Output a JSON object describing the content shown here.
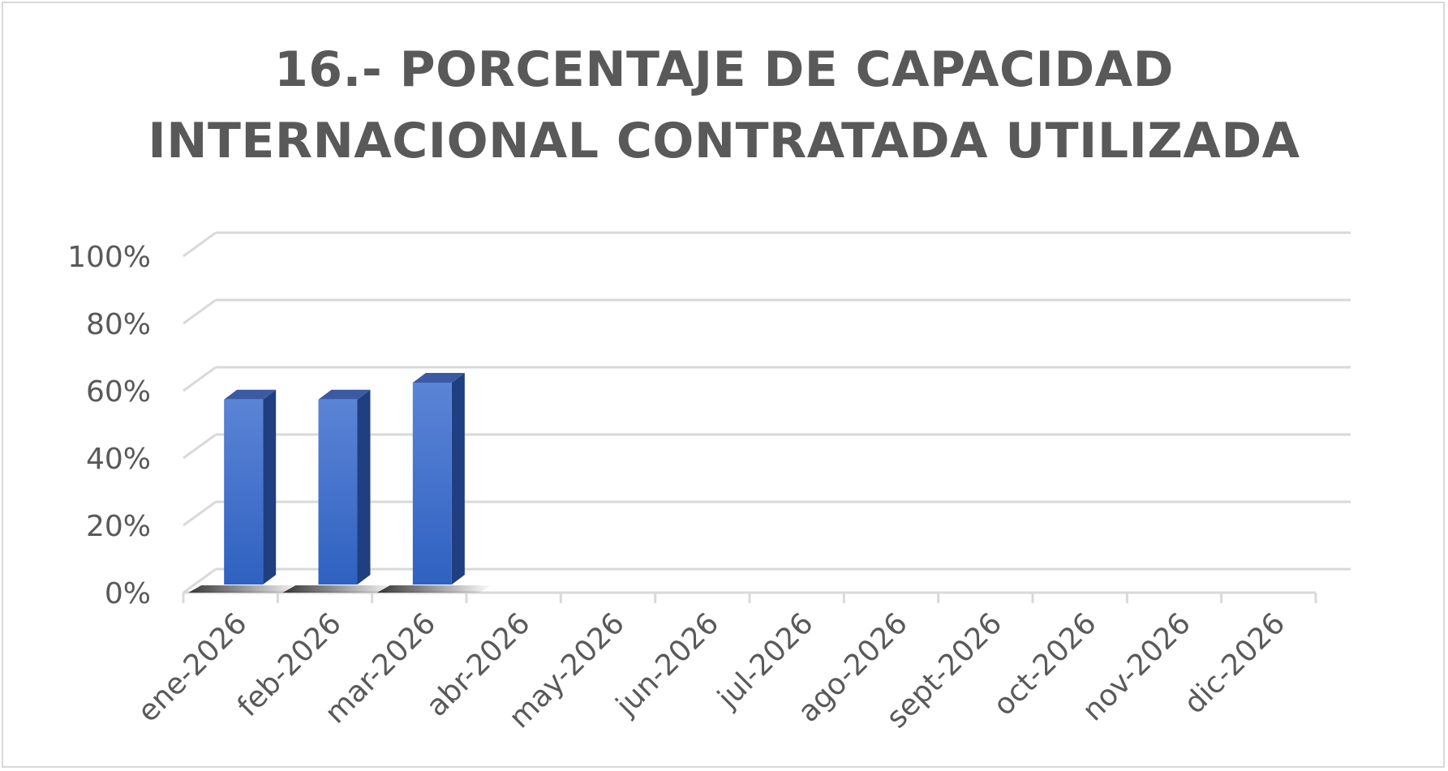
{
  "chart_data": {
    "type": "bar",
    "title_lines": [
      "16.- PORCENTAJE DE CAPACIDAD",
      "INTERNACIONAL CONTRATADA UTILIZADA"
    ],
    "categories": [
      "ene-2026",
      "feb-2026",
      "mar-2026",
      "abr-2026",
      "may-2026",
      "jun-2026",
      "jul-2026",
      "ago-2026",
      "sept-2026",
      "oct-2026",
      "nov-2026",
      "dic-2026"
    ],
    "values": [
      55,
      55,
      60,
      null,
      null,
      null,
      null,
      null,
      null,
      null,
      null,
      null
    ],
    "y_ticks": [
      "0%",
      "20%",
      "40%",
      "60%",
      "80%",
      "100%"
    ],
    "ylim": [
      0,
      100
    ],
    "grid": true,
    "style": "3d-column",
    "bar_color": "#3a6acb",
    "bar_side_color": "#1f3f80",
    "bar_top_color": "#3b5aa3",
    "grid_color": "#d9d9d9",
    "text_color": "#595959"
  }
}
